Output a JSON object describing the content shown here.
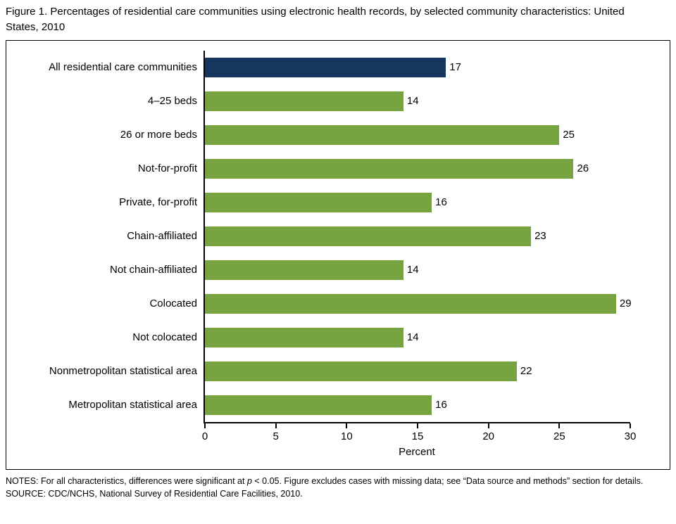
{
  "title": "Figure 1. Percentages of residential care communities using electronic health records, by selected community characteristics: United States, 2010",
  "chart_data": {
    "type": "bar",
    "orientation": "horizontal",
    "categories": [
      "All residential care communities",
      "4–25 beds",
      "26 or more beds",
      "Not-for-profit",
      "Private, for-profit",
      "Chain-affiliated",
      "Not chain-affiliated",
      "Colocated",
      "Not colocated",
      "Nonmetropolitan statistical area",
      "Metropolitan statistical area"
    ],
    "values": [
      17,
      14,
      25,
      26,
      16,
      23,
      14,
      29,
      14,
      22,
      16
    ],
    "xlabel": "Percent",
    "xlim": [
      0,
      30
    ],
    "xticks": [
      0,
      5,
      10,
      15,
      20,
      25,
      30
    ],
    "highlight_index": 0,
    "colors": {
      "highlight": "#17365D",
      "default": "#76A23F"
    },
    "legend": "none",
    "grid": "off"
  },
  "notes": {
    "prefix": "NOTES: For all characteristics, differences were significant at ",
    "italic": "p",
    "suffix": " < 0.05. Figure excludes cases with missing data; see “Data source and methods” section for details.",
    "source": "SOURCE: CDC/NCHS, National Survey of Residential Care Facilities, 2010."
  }
}
